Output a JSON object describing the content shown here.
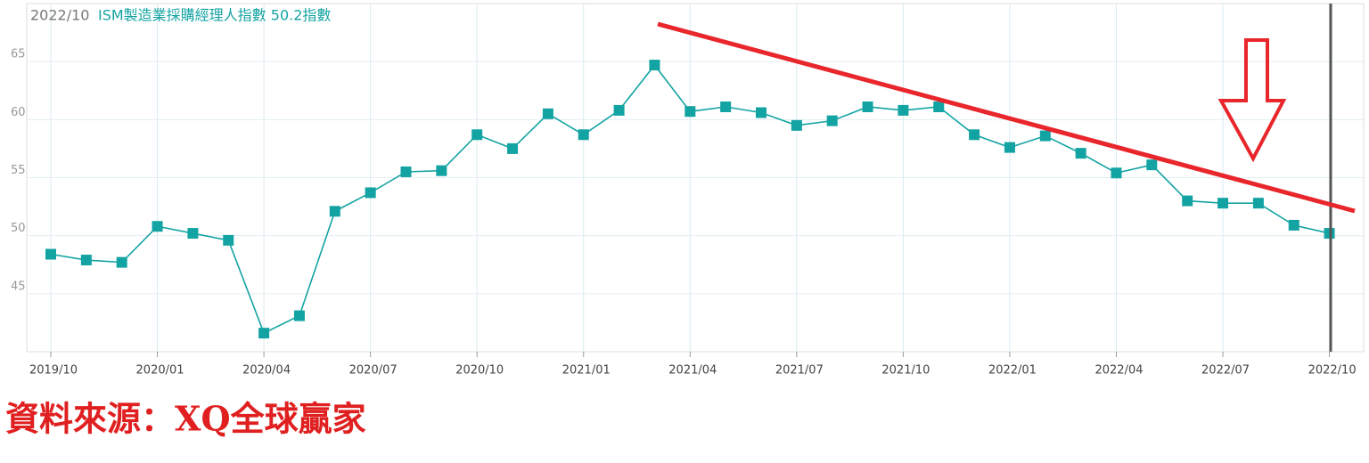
{
  "chart_data": {
    "type": "line",
    "header_date": "2022/10",
    "header_series": "ISM製造業採購經理人指數 50.2指數",
    "source": "資料來源：XQ全球贏家",
    "categories": [
      "2019/10",
      null,
      null,
      "2020/01",
      null,
      null,
      "2020/04",
      null,
      null,
      "2020/07",
      null,
      null,
      "2020/10",
      null,
      null,
      "2021/01",
      null,
      null,
      "2021/04",
      null,
      null,
      "2021/07",
      null,
      null,
      "2021/10",
      null,
      null,
      "2022/01",
      null,
      null,
      "2022/04",
      null,
      null,
      "2022/07",
      null,
      null,
      "2022/10"
    ],
    "series": [
      {
        "name": "ISM製造業採購經理人指數",
        "color": "#14a3a3",
        "values": [
          48.4,
          47.9,
          47.7,
          50.8,
          50.2,
          49.6,
          41.6,
          43.1,
          52.1,
          53.7,
          55.5,
          55.6,
          58.7,
          57.5,
          60.5,
          58.7,
          60.8,
          64.7,
          60.7,
          61.1,
          60.6,
          59.5,
          59.9,
          61.1,
          60.8,
          61.1,
          58.7,
          57.6,
          58.6,
          57.1,
          55.4,
          56.1,
          53.0,
          52.8,
          52.8,
          50.9,
          50.2
        ]
      }
    ],
    "ylim": [
      40,
      70
    ],
    "yticks": [
      45,
      50,
      55,
      60,
      65
    ],
    "grid": true
  }
}
